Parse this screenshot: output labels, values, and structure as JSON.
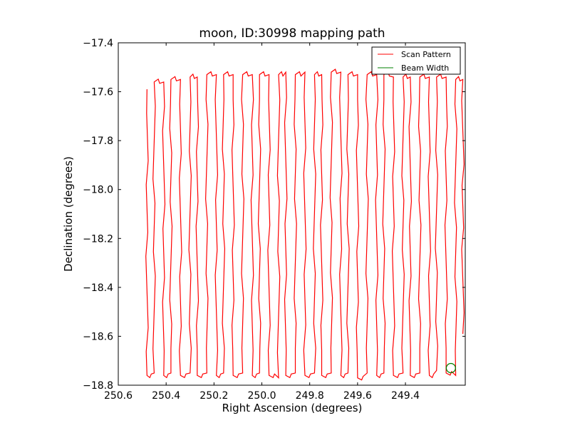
{
  "chart_data": {
    "type": "line",
    "title": "moon, ID:30998 mapping path",
    "xlabel": "Right Ascension (degrees)",
    "ylabel": "Declination (degrees)",
    "xlim": [
      250.6,
      249.15
    ],
    "ylim": [
      -18.8,
      -17.4
    ],
    "x_inverted": true,
    "xticks": [
      250.6,
      250.4,
      250.2,
      250.0,
      249.8,
      249.6,
      249.4
    ],
    "xtick_labels": [
      "250.6",
      "250.4",
      "250.2",
      "250.0",
      "249.8",
      "249.6",
      "249.4"
    ],
    "yticks": [
      -17.4,
      -17.6,
      -17.8,
      -18.0,
      -18.2,
      -18.4,
      -18.6,
      -18.8
    ],
    "ytick_labels": [
      "−17.4",
      "−17.6",
      "−17.8",
      "−18.0",
      "−18.2",
      "−18.4",
      "−18.6",
      "−18.8"
    ],
    "grid": false,
    "legend_position": "top-right",
    "series": [
      {
        "name": "Scan Pattern",
        "color": "#ff0000",
        "scan_legs": [
          {
            "x": 250.48,
            "y_top": -17.59,
            "y_bottom": -18.76
          },
          {
            "x": 250.45,
            "y_top": -17.56,
            "y_bottom": -18.75
          },
          {
            "x": 250.41,
            "y_top": -17.56,
            "y_bottom": -18.76
          },
          {
            "x": 250.38,
            "y_top": -17.55,
            "y_bottom": -18.75
          },
          {
            "x": 250.34,
            "y_top": -17.55,
            "y_bottom": -18.76
          },
          {
            "x": 250.3,
            "y_top": -17.54,
            "y_bottom": -18.75
          },
          {
            "x": 250.27,
            "y_top": -17.54,
            "y_bottom": -18.76
          },
          {
            "x": 250.23,
            "y_top": -17.53,
            "y_bottom": -18.75
          },
          {
            "x": 250.19,
            "y_top": -17.53,
            "y_bottom": -18.76
          },
          {
            "x": 250.16,
            "y_top": -17.53,
            "y_bottom": -18.75
          },
          {
            "x": 250.12,
            "y_top": -17.53,
            "y_bottom": -18.76
          },
          {
            "x": 250.08,
            "y_top": -17.53,
            "y_bottom": -18.75
          },
          {
            "x": 250.04,
            "y_top": -17.53,
            "y_bottom": -18.76
          },
          {
            "x": 250.01,
            "y_top": -17.53,
            "y_bottom": -18.75
          },
          {
            "x": 249.97,
            "y_top": -17.53,
            "y_bottom": -18.76
          },
          {
            "x": 249.93,
            "y_top": -17.53,
            "y_bottom": -18.77
          },
          {
            "x": 249.9,
            "y_top": -17.52,
            "y_bottom": -18.76
          },
          {
            "x": 249.86,
            "y_top": -17.53,
            "y_bottom": -18.75
          },
          {
            "x": 249.82,
            "y_top": -17.52,
            "y_bottom": -18.76
          },
          {
            "x": 249.78,
            "y_top": -17.53,
            "y_bottom": -18.75
          },
          {
            "x": 249.75,
            "y_top": -17.53,
            "y_bottom": -18.76
          },
          {
            "x": 249.71,
            "y_top": -17.52,
            "y_bottom": -18.75
          },
          {
            "x": 249.67,
            "y_top": -17.52,
            "y_bottom": -18.76
          },
          {
            "x": 249.64,
            "y_top": -17.53,
            "y_bottom": -18.75
          },
          {
            "x": 249.6,
            "y_top": -17.53,
            "y_bottom": -18.77
          },
          {
            "x": 249.56,
            "y_top": -17.53,
            "y_bottom": -18.75
          },
          {
            "x": 249.52,
            "y_top": -17.53,
            "y_bottom": -18.76
          },
          {
            "x": 249.49,
            "y_top": -17.53,
            "y_bottom": -18.75
          },
          {
            "x": 249.45,
            "y_top": -17.54,
            "y_bottom": -18.76
          },
          {
            "x": 249.41,
            "y_top": -17.54,
            "y_bottom": -18.75
          },
          {
            "x": 249.38,
            "y_top": -17.54,
            "y_bottom": -18.76
          },
          {
            "x": 249.34,
            "y_top": -17.54,
            "y_bottom": -18.75
          },
          {
            "x": 249.3,
            "y_top": -17.54,
            "y_bottom": -18.76
          },
          {
            "x": 249.27,
            "y_top": -17.54,
            "y_bottom": -18.74
          },
          {
            "x": 249.23,
            "y_top": -17.54,
            "y_bottom": -18.75
          },
          {
            "x": 249.19,
            "y_top": -17.55,
            "y_bottom": -18.76
          },
          {
            "x": 249.16,
            "y_top": -17.55,
            "y_bottom": -18.59
          }
        ]
      },
      {
        "name": "Beam Width",
        "color": "#008000",
        "shape": "circle",
        "center": {
          "x": 249.21,
          "y": -18.73
        },
        "radius_ra": 0.055
      }
    ]
  }
}
